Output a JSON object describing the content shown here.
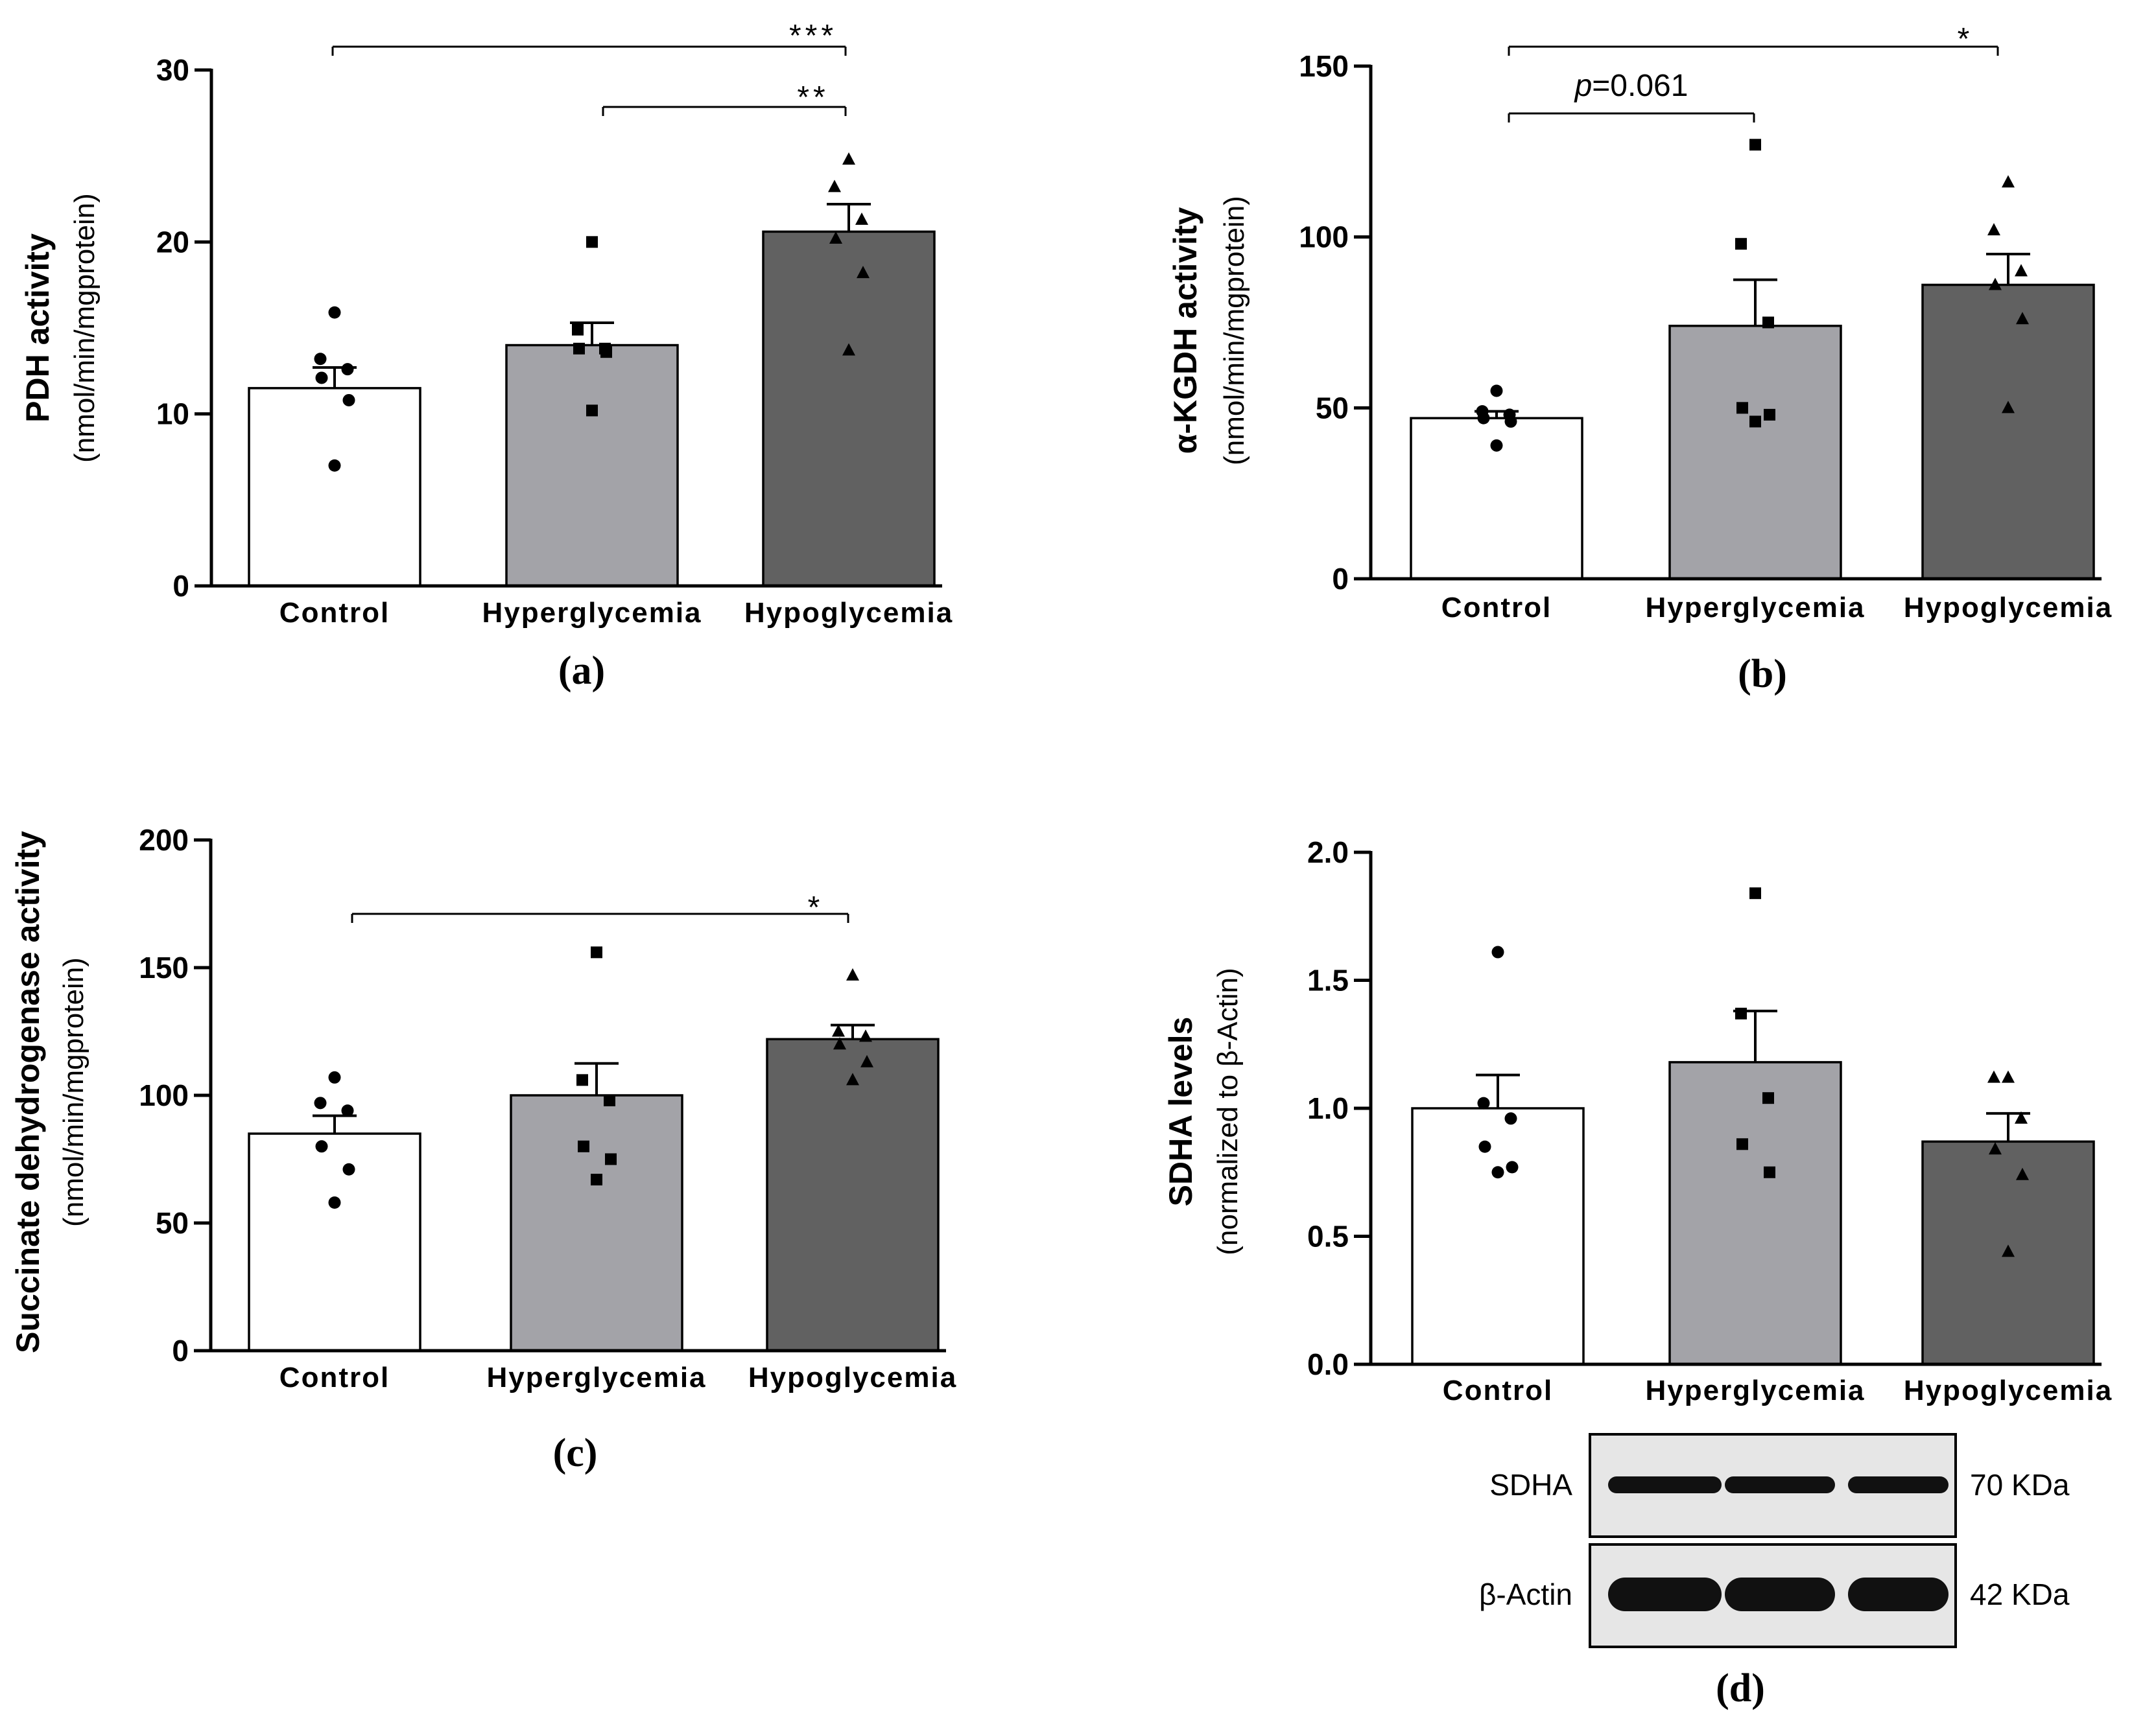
{
  "chart_data": [
    {
      "type": "bar",
      "panel": "(a)",
      "categories": [
        "Control",
        "Hyperglycemia",
        "Hypoglycemia"
      ],
      "values": [
        11.5,
        14.0,
        20.6
      ],
      "sem": [
        1.2,
        1.3,
        1.6
      ],
      "points": [
        [
          15.9,
          13.2,
          12.6,
          12.1,
          10.8,
          7.0
        ],
        [
          20.0,
          14.9,
          13.8,
          13.8,
          13.6,
          10.2
        ],
        [
          24.8,
          23.2,
          21.3,
          20.2,
          18.2,
          13.7
        ]
      ],
      "point_markers": [
        "circle",
        "square",
        "triangle"
      ],
      "bar_colors": [
        "#ffffff",
        "#a3a3a8",
        "#616161"
      ],
      "ylabel": "PDH activity",
      "yunit": "(nmol/min/mgprotein)",
      "ylim": [
        0,
        30
      ],
      "yticks": [
        0,
        10,
        20,
        30
      ],
      "significance": [
        {
          "from": 0,
          "to": 2,
          "label": "***"
        },
        {
          "from": 1,
          "to": 2,
          "label": "**"
        }
      ]
    },
    {
      "type": "bar",
      "panel": "(b)",
      "categories": [
        "Control",
        "Hyperglycemia",
        "Hypoglycemia"
      ],
      "values": [
        47,
        74,
        86
      ],
      "sem": [
        2,
        13.5,
        9
      ],
      "points": [
        [
          55,
          49,
          48,
          47,
          46,
          39
        ],
        [
          127,
          98,
          75,
          50,
          48,
          46
        ],
        [
          116,
          102,
          90,
          86,
          76,
          50
        ]
      ],
      "point_markers": [
        "circle",
        "square",
        "triangle"
      ],
      "bar_colors": [
        "#ffffff",
        "#a3a3a8",
        "#616161"
      ],
      "ylabel": "α-KGDH activity",
      "yunit": "(nmol/min/mgprotein)",
      "ylim": [
        0,
        150
      ],
      "yticks": [
        0,
        50,
        100,
        150
      ],
      "significance": [
        {
          "from": 0,
          "to": 2,
          "label": "*"
        },
        {
          "from": 0,
          "to": 1,
          "label_italic": "p",
          "label": "=0.061"
        }
      ]
    },
    {
      "type": "bar",
      "panel": "(c)",
      "categories": [
        "Control",
        "Hyperglycemia",
        "Hypoglycemia"
      ],
      "values": [
        85,
        100,
        122
      ],
      "sem": [
        7,
        12.5,
        5.5
      ],
      "points": [
        [
          107,
          97,
          94,
          80,
          71,
          58
        ],
        [
          156,
          106,
          98,
          80,
          75,
          67
        ],
        [
          147,
          125,
          123,
          120,
          113,
          106
        ]
      ],
      "point_markers": [
        "circle",
        "square",
        "triangle"
      ],
      "bar_colors": [
        "#ffffff",
        "#a3a3a8",
        "#616161"
      ],
      "ylabel": "Succinate dehydrogenase activity",
      "yunit": "(nmol/min/mgprotein)",
      "ylim": [
        0,
        200
      ],
      "yticks": [
        0,
        50,
        100,
        150,
        200
      ],
      "significance": [
        {
          "from": 0,
          "to": 2,
          "label": "*"
        }
      ]
    },
    {
      "type": "bar",
      "panel": "(d)",
      "categories": [
        "Control",
        "Hyperglycemia",
        "Hypoglycemia"
      ],
      "values": [
        1.0,
        1.18,
        0.87
      ],
      "sem": [
        0.13,
        0.2,
        0.11
      ],
      "points": [
        [
          1.61,
          1.02,
          0.96,
          0.85,
          0.77,
          0.75
        ],
        [
          1.84,
          1.37,
          1.04,
          0.86,
          0.75
        ],
        [
          1.12,
          1.12,
          0.96,
          0.84,
          0.74,
          0.44
        ]
      ],
      "point_markers": [
        "circle",
        "square",
        "triangle"
      ],
      "bar_colors": [
        "#ffffff",
        "#a3a3a8",
        "#616161"
      ],
      "ylabel": "SDHA levels",
      "yunit": "(normalized to β-Actin)",
      "ylim": [
        0,
        2.0
      ],
      "yticks": [
        "0.0",
        "0.5",
        "1.0",
        "1.5",
        "2.0"
      ],
      "significance": []
    }
  ],
  "blot": {
    "rows": [
      {
        "label": "SDHA",
        "size": "70 KDa"
      },
      {
        "label": "β-Actin",
        "size": "42 KDa"
      }
    ]
  }
}
